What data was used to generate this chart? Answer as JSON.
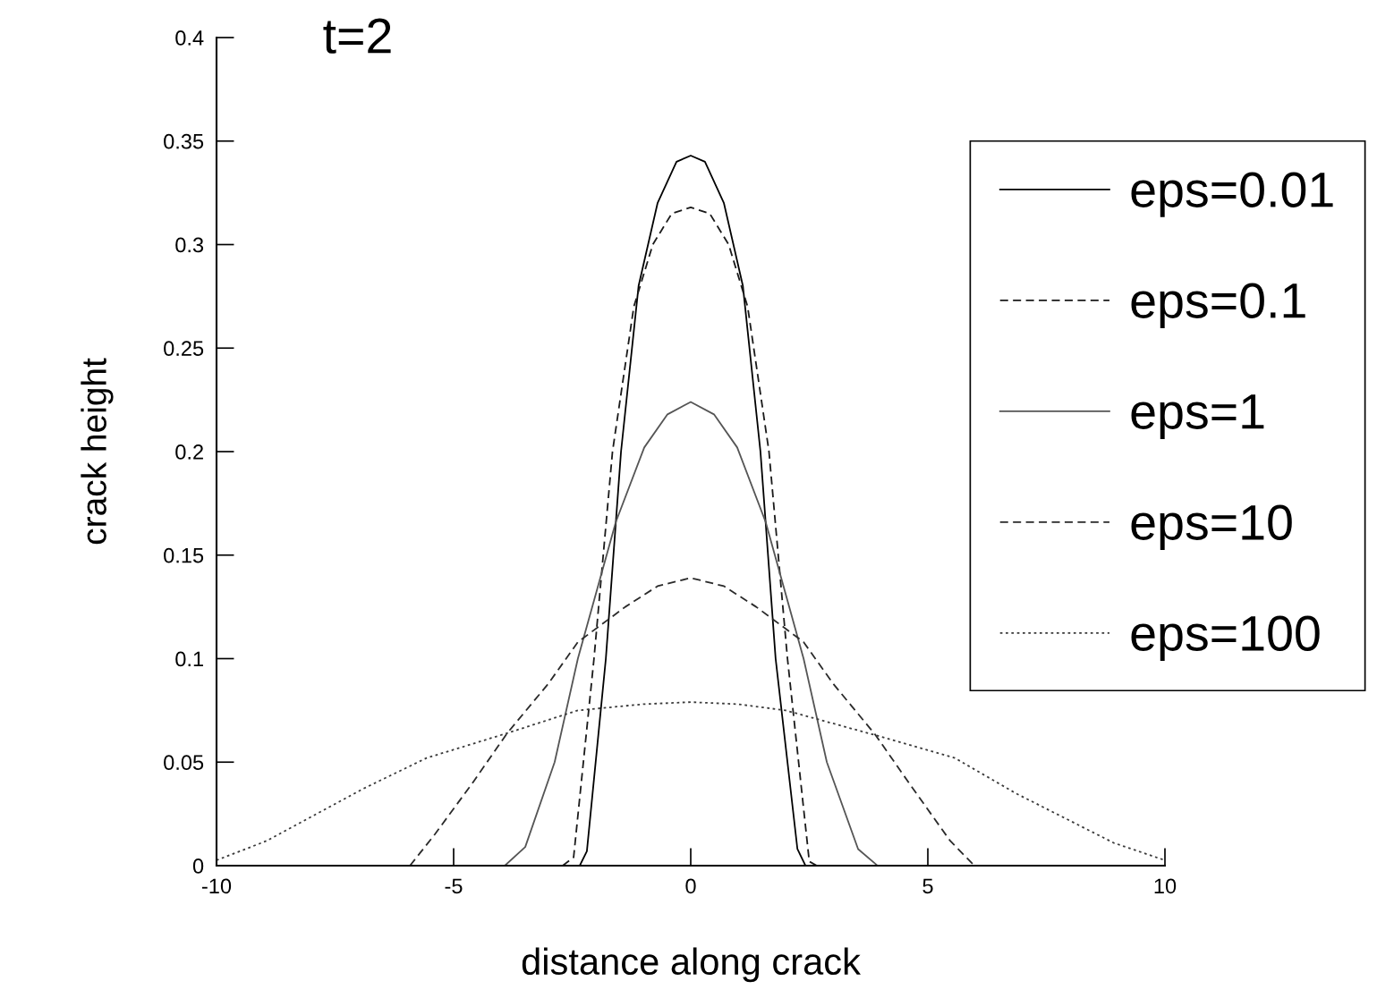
{
  "chart_data": {
    "type": "line",
    "title": "t=2",
    "xlabel": "distance along crack",
    "ylabel": "crack height",
    "xlim": [
      -10,
      10
    ],
    "xticks": [
      -10,
      -5,
      0,
      5,
      10
    ],
    "ylim": [
      0,
      0.4
    ],
    "yticks": [
      0,
      0.05,
      0.1,
      0.15,
      0.2,
      0.25,
      0.3,
      0.35,
      0.4
    ],
    "grid": false,
    "legend": "right",
    "marker": "none",
    "series": [
      {
        "name": "eps=0.01",
        "color": "#000000",
        "line_style": "solid",
        "x": [
          -2.34,
          -2.19,
          -1.79,
          -1.47,
          -1.1,
          -0.7,
          -0.3,
          0,
          0.3,
          0.7,
          1.1,
          1.47,
          1.79,
          2.25,
          2.42
        ],
        "values": [
          0,
          0.007,
          0.1,
          0.2,
          0.28,
          0.32,
          0.34,
          0.343,
          0.34,
          0.32,
          0.28,
          0.2,
          0.1,
          0.008,
          0
        ]
      },
      {
        "name": "eps=0.1",
        "color": "#1a1a1a",
        "line_style": "dashed",
        "x": [
          -2.7,
          -2.47,
          -2.04,
          -1.65,
          -1.2,
          -0.8,
          -0.4,
          0,
          0.4,
          0.8,
          1.2,
          1.65,
          2.04,
          2.5,
          2.66
        ],
        "values": [
          0,
          0.004,
          0.1,
          0.2,
          0.27,
          0.3,
          0.315,
          0.318,
          0.315,
          0.3,
          0.27,
          0.2,
          0.1,
          0.002,
          0
        ]
      },
      {
        "name": "eps=1",
        "color": "#555555",
        "line_style": "solid",
        "x": [
          -3.92,
          -3.49,
          -2.87,
          -2.38,
          -1.58,
          -0.98,
          -0.49,
          0,
          0.49,
          0.98,
          1.58,
          2.38,
          2.87,
          3.53,
          3.94
        ],
        "values": [
          0,
          0.009,
          0.05,
          0.1,
          0.166,
          0.202,
          0.218,
          0.224,
          0.218,
          0.202,
          0.166,
          0.1,
          0.05,
          0.008,
          0
        ]
      },
      {
        "name": "eps=10",
        "color": "#2a2a2a",
        "line_style": "dashed",
        "x": [
          -5.92,
          -5.4,
          -4.6,
          -3.87,
          -3.0,
          -2.38,
          -1.38,
          -0.7,
          0,
          0.7,
          1.38,
          2.38,
          3.0,
          3.9,
          4.6,
          5.47,
          5.98
        ],
        "values": [
          0,
          0.015,
          0.04,
          0.064,
          0.088,
          0.108,
          0.125,
          0.135,
          0.139,
          0.135,
          0.125,
          0.108,
          0.088,
          0.063,
          0.04,
          0.012,
          0
        ]
      },
      {
        "name": "eps=100",
        "color": "#3a3a3a",
        "line_style": "dotted",
        "x": [
          -10,
          -8.94,
          -6.92,
          -5.57,
          -3.87,
          -2.38,
          -1.0,
          0,
          1.0,
          2.0,
          3.9,
          5.57,
          6.85,
          8.92,
          10
        ],
        "values": [
          0.0026,
          0.012,
          0.037,
          0.052,
          0.064,
          0.075,
          0.078,
          0.079,
          0.078,
          0.075,
          0.063,
          0.052,
          0.035,
          0.011,
          0.0026
        ]
      }
    ]
  }
}
